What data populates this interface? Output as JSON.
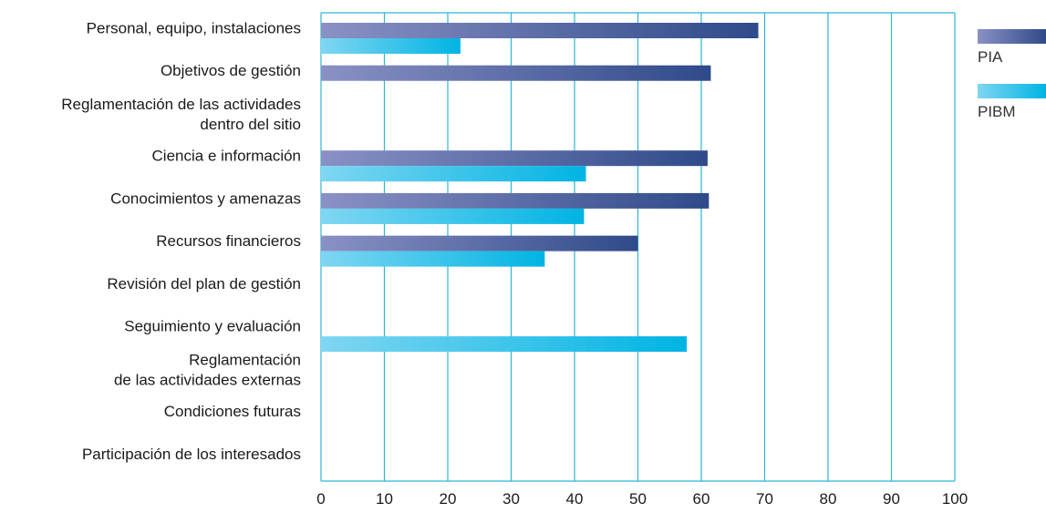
{
  "colors": {
    "pia_start": "#8a91c4",
    "pia_end": "#2f4a8a",
    "pibm_start": "#7fd6f2",
    "pibm_end": "#00b4e3",
    "grid": "#2bb8d6"
  },
  "chart_data": {
    "type": "bar",
    "orientation": "horizontal",
    "categories": [
      [
        "Personal, equipo, instalaciones"
      ],
      [
        "Objetivos de gestión"
      ],
      [
        "Reglamentación de las actividades",
        "dentro del sitio"
      ],
      [
        "Ciencia e información"
      ],
      [
        "Conocimientos y amenazas"
      ],
      [
        "Recursos financieros"
      ],
      [
        "Revisión del plan de gestión"
      ],
      [
        "Seguimiento y evaluación"
      ],
      [
        "Reglamentación",
        "de las actividades externas"
      ],
      [
        "Condiciones futuras"
      ],
      [
        "Participación de los interesados"
      ]
    ],
    "series": [
      {
        "name": "PIA",
        "values": [
          69,
          61.5,
          0,
          61,
          61.2,
          50,
          0,
          0,
          0,
          0,
          0
        ]
      },
      {
        "name": "PIBM",
        "values": [
          22,
          0,
          0,
          41.8,
          41.5,
          35.3,
          0,
          57.7,
          0,
          0,
          0
        ]
      }
    ],
    "xlim": [
      0,
      100
    ],
    "xticks": [
      "0",
      "10",
      "20",
      "30",
      "40",
      "50",
      "60",
      "70",
      "80",
      "90",
      "100"
    ],
    "grid": true,
    "legend_position": "right"
  }
}
